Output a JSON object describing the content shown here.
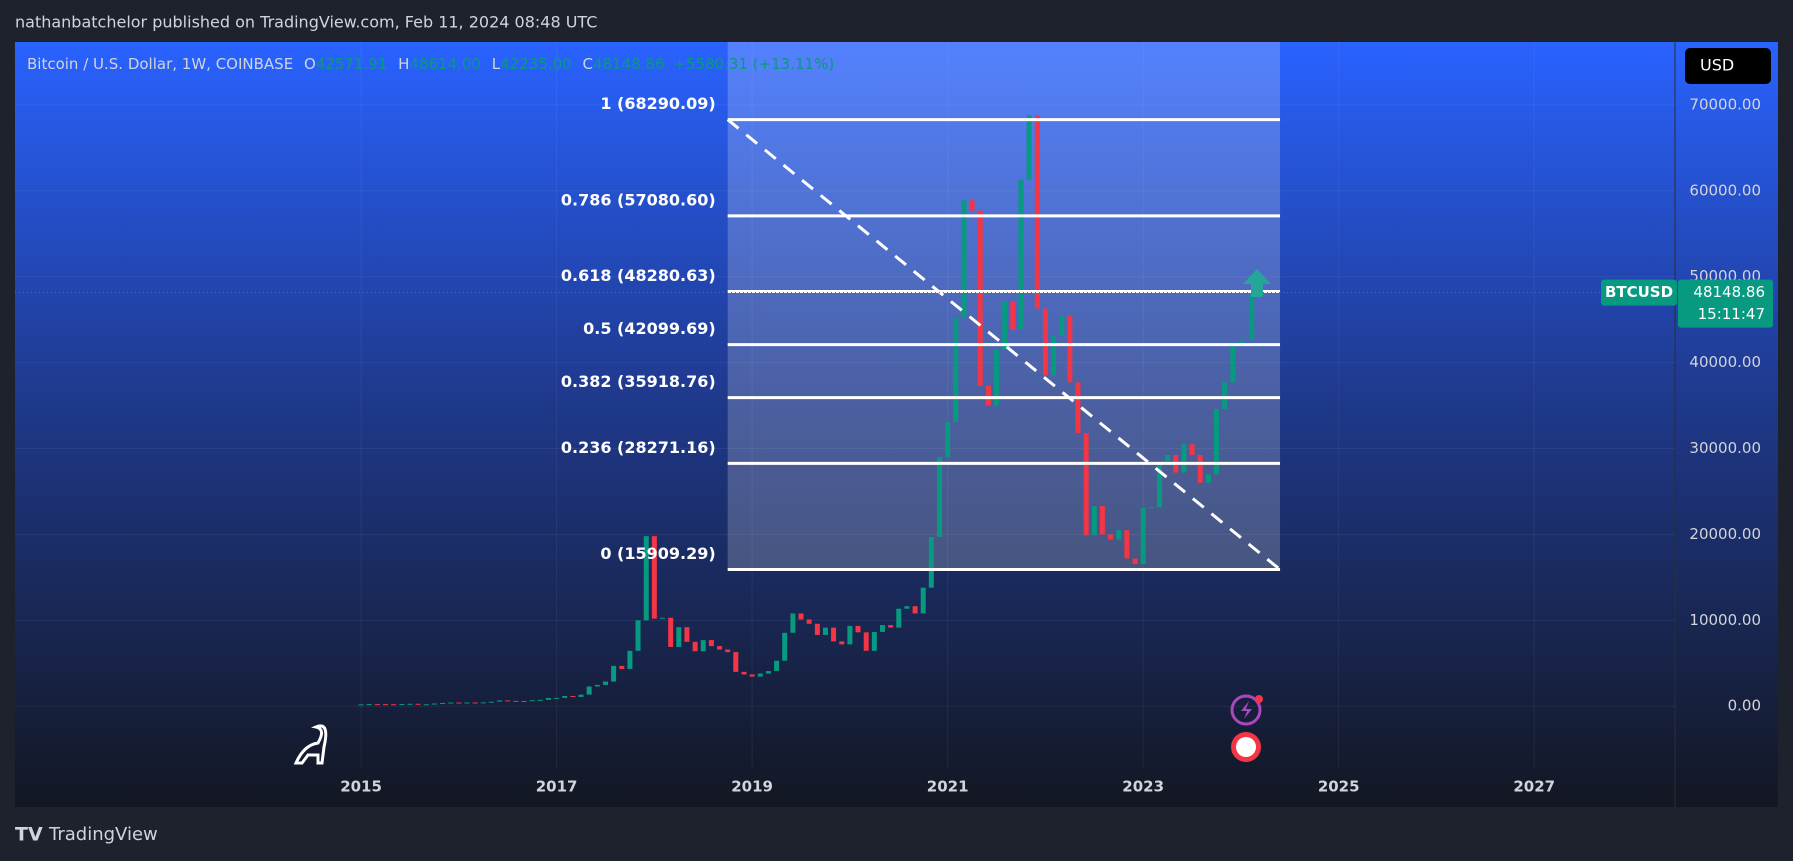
{
  "header": {
    "byline": "nathanbatchelor published on TradingView.com, Feb 11, 2024 08:48 UTC",
    "brand": "TradingView"
  },
  "chart_data": {
    "type": "candlestick",
    "symbol": "Bitcoin / U.S. Dollar, 1W, COINBASE",
    "ohlc": {
      "o_label": "O",
      "o": "42571.91",
      "h_label": "H",
      "h": "48614.00",
      "l_label": "L",
      "l": "42235.00",
      "c_label": "C",
      "c": "48148.86",
      "change": "+5580.31 (+13.11%)"
    },
    "currency": "USD",
    "price_tag": {
      "symbol": "BTCUSD",
      "price": 48148.86,
      "countdown": "15:11:47"
    },
    "up_color": "#089981",
    "down_color": "#f23645",
    "xlim": [
      2011.46,
      2028.44
    ],
    "xticks": [
      2015,
      2017,
      2019,
      2021,
      2023,
      2025,
      2027
    ],
    "ylim": [
      -7190,
      77320
    ],
    "yticks": [
      {
        "value": 0,
        "label": "0.00"
      },
      {
        "value": 10000,
        "label": "10000.00"
      },
      {
        "value": 20000,
        "label": "20000.00"
      },
      {
        "value": 30000,
        "label": "30000.00"
      },
      {
        "value": 40000,
        "label": "40000.00"
      },
      {
        "value": 50000,
        "label": "50000.00"
      },
      {
        "value": 60000,
        "label": "60000.00"
      },
      {
        "value": 70000,
        "label": "70000.00"
      }
    ],
    "series": [
      {
        "name": "BTCUSD",
        "x": [
          2015.0,
          2015.083,
          2015.167,
          2015.25,
          2015.333,
          2015.417,
          2015.5,
          2015.583,
          2015.667,
          2015.75,
          2015.833,
          2015.917,
          2016.0,
          2016.083,
          2016.167,
          2016.25,
          2016.333,
          2016.417,
          2016.5,
          2016.583,
          2016.667,
          2016.75,
          2016.833,
          2016.917,
          2017.0,
          2017.083,
          2017.167,
          2017.25,
          2017.333,
          2017.417,
          2017.5,
          2017.583,
          2017.667,
          2017.75,
          2017.833,
          2017.917,
          2018.0,
          2018.083,
          2018.167,
          2018.25,
          2018.333,
          2018.417,
          2018.5,
          2018.583,
          2018.667,
          2018.75,
          2018.833,
          2018.917,
          2019.0,
          2019.083,
          2019.167,
          2019.25,
          2019.333,
          2019.417,
          2019.5,
          2019.583,
          2019.667,
          2019.75,
          2019.833,
          2019.917,
          2020.0,
          2020.083,
          2020.167,
          2020.25,
          2020.333,
          2020.417,
          2020.5,
          2020.583,
          2020.667,
          2020.75,
          2020.833,
          2020.917,
          2021.0,
          2021.083,
          2021.167,
          2021.25,
          2021.333,
          2021.417,
          2021.5,
          2021.583,
          2021.667,
          2021.75,
          2021.833,
          2021.917,
          2022.0,
          2022.083,
          2022.167,
          2022.25,
          2022.333,
          2022.417,
          2022.5,
          2022.583,
          2022.667,
          2022.75,
          2022.833,
          2022.917,
          2023.0,
          2023.083,
          2023.167,
          2023.25,
          2023.333,
          2023.417,
          2023.5,
          2023.583,
          2023.667,
          2023.75,
          2023.833,
          2023.917,
          2024.0,
          2024.11
        ],
        "values": [
          220,
          250,
          245,
          235,
          230,
          265,
          285,
          230,
          235,
          315,
          380,
          430,
          370,
          440,
          415,
          450,
          530,
          675,
          625,
          575,
          610,
          700,
          745,
          965,
          970,
          1190,
          1080,
          1350,
          2300,
          2480,
          2870,
          4700,
          4340,
          6450,
          10000,
          19800,
          10200,
          10300,
          6900,
          9200,
          7500,
          6400,
          7700,
          7000,
          6600,
          6300,
          4000,
          3700,
          3450,
          3800,
          4100,
          5300,
          8550,
          10800,
          10100,
          9600,
          8300,
          9150,
          7550,
          7200,
          9350,
          8600,
          6450,
          8650,
          9450,
          9150,
          11350,
          11650,
          10800,
          13800,
          19700,
          29000,
          33100,
          45200,
          58900,
          57700,
          37300,
          35000,
          41500,
          47100,
          43800,
          61300,
          68800,
          46300,
          38500,
          43200,
          45500,
          37700,
          31800,
          19900,
          23300,
          20000,
          19400,
          20500,
          17200,
          16550,
          23100,
          23150,
          28500,
          29250,
          27200,
          30500,
          29250,
          26000,
          27000,
          34600,
          37700,
          42300,
          42600,
          48148.86
        ]
      }
    ],
    "fib": {
      "x": [
        2018.75,
        2024.4
      ],
      "levels": [
        {
          "value": 68290.09,
          "label": "1 (68290.09)"
        },
        {
          "value": 57080.6,
          "label": "0.786 (57080.60)"
        },
        {
          "value": 48280.63,
          "label": "0.618 (48280.63)"
        },
        {
          "value": 42099.69,
          "label": "0.5 (42099.69)"
        },
        {
          "value": 35918.76,
          "label": "0.382 (35918.76)"
        },
        {
          "value": 28271.16,
          "label": "0.236 (28271.16)"
        },
        {
          "value": 15909.29,
          "label": "0 (15909.29)"
        }
      ]
    }
  }
}
